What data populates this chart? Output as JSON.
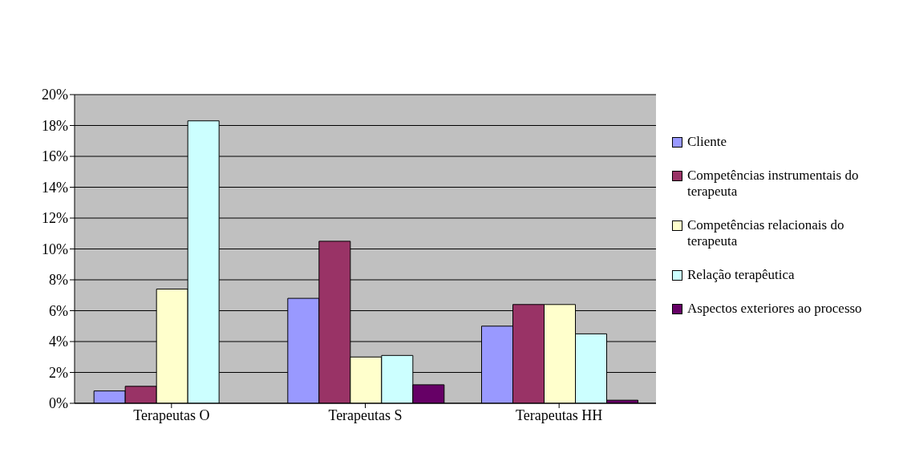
{
  "chart_data": {
    "type": "bar",
    "categories": [
      "Terapeutas O",
      "Terapeutas S",
      "Terapeutas HH"
    ],
    "series": [
      {
        "name": "Cliente",
        "color": "#9999ff",
        "values": [
          0.8,
          6.8,
          5.0
        ]
      },
      {
        "name": "Competências instrumentais do terapeuta",
        "color": "#993366",
        "values": [
          1.1,
          10.5,
          6.4
        ]
      },
      {
        "name": "Competências relacionais do terapeuta",
        "color": "#ffffcc",
        "values": [
          7.4,
          3.0,
          6.4
        ]
      },
      {
        "name": "Relação terapêutica",
        "color": "#ccffff",
        "values": [
          18.3,
          3.1,
          4.5
        ]
      },
      {
        "name": "Aspectos exteriores ao processo",
        "color": "#660066",
        "values": [
          0,
          1.2,
          0.2
        ]
      }
    ],
    "ylim": [
      0,
      20
    ],
    "yticks": [
      {
        "value": 0,
        "label": "0%"
      },
      {
        "value": 2,
        "label": "2%"
      },
      {
        "value": 4,
        "label": "4%"
      },
      {
        "value": 6,
        "label": "6%"
      },
      {
        "value": 8,
        "label": "8%"
      },
      {
        "value": 10,
        "label": "10%"
      },
      {
        "value": 12,
        "label": "12%"
      },
      {
        "value": 14,
        "label": "14%"
      },
      {
        "value": 16,
        "label": "16%"
      },
      {
        "value": 18,
        "label": "18%"
      },
      {
        "value": 20,
        "label": "20%"
      }
    ],
    "grid": "y",
    "legend": "right"
  }
}
